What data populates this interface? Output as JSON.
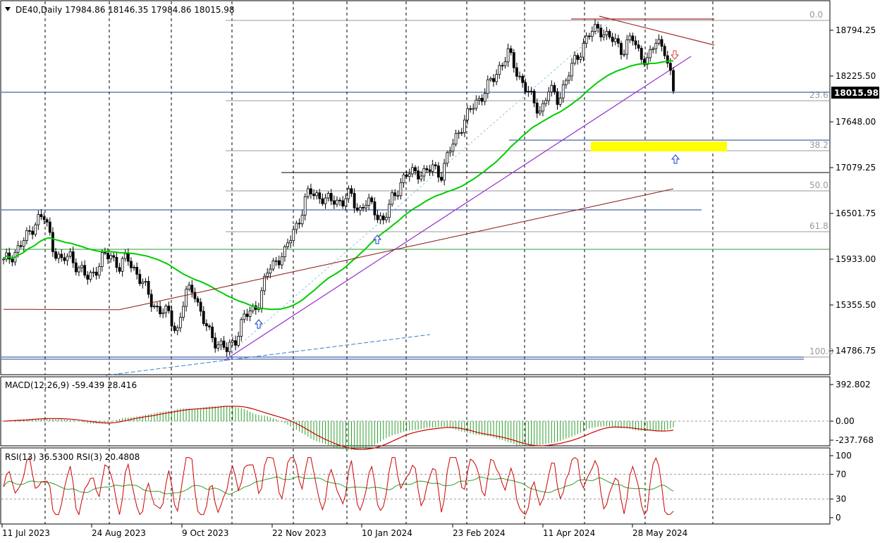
{
  "chart_data": {
    "type": "candlestick",
    "symbol": "DE40",
    "timeframe": "Daily",
    "header": "DE40,Daily  17984.86 18146.35 17984.86 18015.98",
    "ohlc": {
      "open": 17984.86,
      "high": 18146.35,
      "low": 17984.86,
      "close": 18015.98
    },
    "price_axis": {
      "ticks": [
        "18794.25",
        "18225.50",
        "17648.00",
        "17079.25",
        "16501.75",
        "15933.00",
        "15355.50",
        "14786.75"
      ],
      "ylim": [
        14700,
        19000
      ],
      "current_price_label": "18015.98"
    },
    "time_axis": {
      "labels": [
        "11 Jul 2023",
        "24 Aug 2023",
        "9 Oct 2023",
        "22 Nov 2023",
        "10 Jan 2024",
        "23 Feb 2024",
        "11 Apr 2024",
        "28 May 2024"
      ]
    },
    "fibonacci": {
      "levels": [
        "0.0",
        "23.6",
        "38.2",
        "50.0",
        "61.8",
        "100.0"
      ],
      "high": 18920,
      "low": 14730
    },
    "close_series_approx": [
      15900,
      16000,
      16100,
      16250,
      16450,
      16450,
      16100,
      15900,
      16000,
      15850,
      15700,
      15800,
      15950,
      16000,
      15850,
      15950,
      15800,
      15600,
      15400,
      15300,
      15250,
      15050,
      15500,
      15600,
      15200,
      15000,
      14900,
      14800,
      14950,
      15200,
      15300,
      15450,
      15800,
      15950,
      16000,
      16300,
      16500,
      16800,
      16750,
      16650,
      16700,
      16650,
      16750,
      16550,
      16650,
      16550,
      16400,
      16700,
      16900,
      17000,
      17050,
      17000,
      17100,
      17000,
      17300,
      17550,
      17700,
      17900,
      18000,
      18150,
      18350,
      18500,
      18300,
      18100,
      17900,
      17800,
      18050,
      17950,
      18150,
      18400,
      18600,
      18750,
      18850,
      18700,
      18650,
      18550,
      18700,
      18500,
      18400,
      18700,
      18550,
      18000
    ],
    "indicators": {
      "macd": {
        "label": "MACD(12,26,9) -59.439 28.416",
        "ticks": [
          "392.802",
          "0.00",
          "-237.768"
        ],
        "ylim": [
          -280,
          420
        ]
      },
      "rsi": {
        "label": "RSI(13) 36.5300  RSI(3) 20.4808",
        "ticks": [
          "100",
          "70",
          "30",
          "0"
        ],
        "ylim": [
          0,
          100
        ]
      }
    },
    "colors": {
      "up_candle": "#000000",
      "down_candle": "#000000",
      "ma_fast": "#00cc00",
      "ma_slow": "#8b1a1a",
      "trendline": "#9932cc",
      "horizontal_blue": "#1e3c96",
      "horizontal_green": "#2e9e2e",
      "resistance": "#a52a2a",
      "highlight_zone": "#ffff00",
      "macd_hist": "#2e9e2e",
      "signal_line": "#cc0000",
      "rsi_fast": "#cc0000",
      "rsi_slow": "#2e9e2e",
      "arrow_up": "#1e3cc8",
      "arrow_down": "#e04040"
    }
  }
}
